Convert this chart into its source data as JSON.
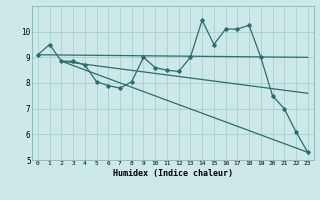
{
  "title": "",
  "xlabel": "Humidex (Indice chaleur)",
  "bg_color": "#cce8e8",
  "line_color": "#2a6e6e",
  "grid_major_color": "#aacfcf",
  "grid_minor_color": "#f0f8f8",
  "xlim": [
    -0.5,
    23.5
  ],
  "ylim": [
    5,
    11
  ],
  "yticks": [
    5,
    6,
    7,
    8,
    9,
    10
  ],
  "xticks": [
    0,
    1,
    2,
    3,
    4,
    5,
    6,
    7,
    8,
    9,
    10,
    11,
    12,
    13,
    14,
    15,
    16,
    17,
    18,
    19,
    20,
    21,
    22,
    23
  ],
  "series0_x": [
    0,
    1,
    2,
    3,
    4,
    5,
    6,
    7,
    8,
    9,
    10,
    11,
    12,
    13,
    14,
    15,
    16,
    17,
    18,
    19,
    20,
    21,
    22,
    23
  ],
  "series0_y": [
    9.1,
    9.5,
    8.85,
    8.85,
    8.7,
    8.05,
    7.9,
    7.8,
    8.05,
    9.0,
    8.6,
    8.5,
    8.45,
    9.0,
    10.45,
    9.5,
    10.1,
    10.1,
    10.25,
    9.0,
    7.5,
    7.0,
    6.1,
    5.3
  ],
  "series1_x": [
    0,
    23
  ],
  "series1_y": [
    9.1,
    9.0
  ],
  "series2_x": [
    2,
    23
  ],
  "series2_y": [
    8.85,
    7.6
  ],
  "series3_x": [
    2,
    23
  ],
  "series3_y": [
    8.85,
    5.3
  ]
}
